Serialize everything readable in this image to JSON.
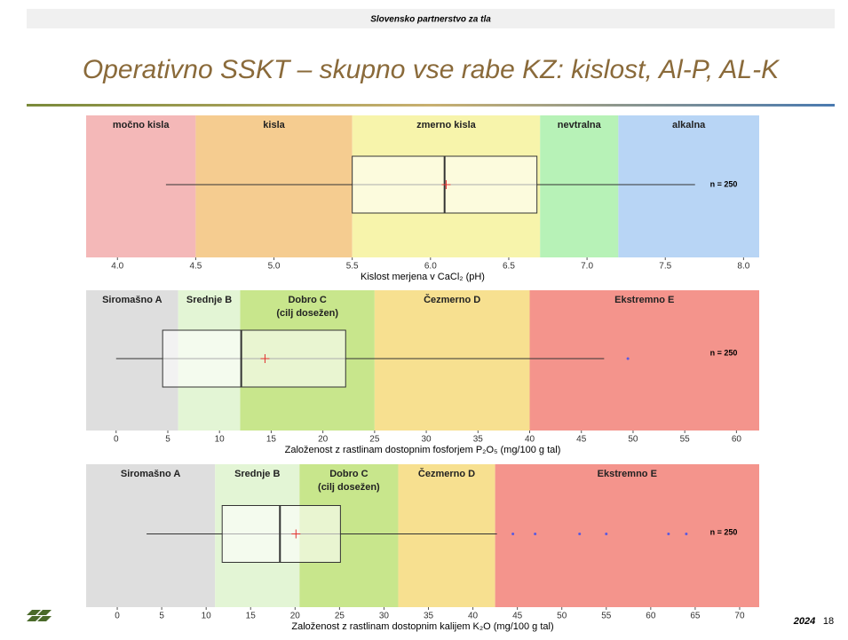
{
  "header": {
    "text": "Slovensko partnerstvo za tla",
    "title": "Operativno SSKT – skupno vse rabe KZ: kislost, Al-P, AL-K"
  },
  "footer": {
    "year": "2024",
    "page": "18"
  },
  "chart_data": [
    {
      "type": "box",
      "xlabel": "Kislost merjena v CaCl₂ (pH)",
      "xlim": [
        3.8,
        8.1
      ],
      "xticks": [
        {
          "value": 4,
          "label": "4.0"
        },
        4.5,
        {
          "value": 5,
          "label": "5.0"
        },
        5.5,
        {
          "value": 6,
          "label": "6.0"
        },
        6.5,
        {
          "value": 7,
          "label": "7.0"
        },
        7.5,
        {
          "value": 8,
          "label": "8.0"
        }
      ],
      "zones": [
        {
          "label": "močno kisla",
          "from": 3.8,
          "to": 4.5,
          "color": "#f4b8b8"
        },
        {
          "label": "kisla",
          "from": 4.5,
          "to": 5.5,
          "color": "#f5cc90"
        },
        {
          "label": "zmerno kisla",
          "from": 5.5,
          "to": 6.7,
          "color": "#f7f4ab"
        },
        {
          "label": "nevtralna",
          "from": 6.7,
          "to": 7.2,
          "color": "#b7f2b7"
        },
        {
          "label": "alkalna",
          "from": 7.2,
          "to": 8.1,
          "color": "#b8d5f5"
        }
      ],
      "box": {
        "min": 4.31,
        "q1": 5.5,
        "median": 6.09,
        "mean": 6.1,
        "q3": 6.68,
        "max": 7.69
      },
      "outliers": [],
      "n_label": "n = 250"
    },
    {
      "type": "box",
      "xlabel": "Založenost z rastlinam dostopnim fosforjem P₂O₅ (mg/100 g tal)",
      "xlim": [
        -2.9,
        62.2
      ],
      "xticks": [
        0,
        5,
        10,
        15,
        20,
        25,
        30,
        35,
        40,
        45,
        50,
        55,
        60
      ],
      "zones": [
        {
          "label": "Siromašno A",
          "from": -2.9,
          "to": 6,
          "color": "#dedede"
        },
        {
          "label": "Srednje B",
          "from": 6,
          "to": 12,
          "color": "#e3f5d5"
        },
        {
          "label": "Dobro C\n(cilj dosežen)",
          "from": 12,
          "to": 25,
          "color": "#c8e68c"
        },
        {
          "label": "Čezmerno D",
          "from": 25,
          "to": 40,
          "color": "#f7e090"
        },
        {
          "label": "Ekstremno E",
          "from": 40,
          "to": 62.2,
          "color": "#f4948c"
        }
      ],
      "box": {
        "min": 0,
        "q1": 4.5,
        "median": 12.1,
        "mean": 14.4,
        "q3": 22.2,
        "max": 47.2
      },
      "outliers": [
        49.5
      ],
      "n_label": "n = 250"
    },
    {
      "type": "box",
      "xlabel": "Založenost z rastlinam dostopnim kalijem K₂O (mg/100 g tal)",
      "xlim": [
        -3.5,
        72.2
      ],
      "xticks": [
        0,
        5,
        10,
        15,
        20,
        25,
        30,
        35,
        40,
        45,
        50,
        55,
        60,
        65,
        70
      ],
      "zones": [
        {
          "label": "Siromašno A",
          "from": -3.5,
          "to": 11,
          "color": "#dedede"
        },
        {
          "label": "Srednje B",
          "from": 11,
          "to": 20.5,
          "color": "#e3f5d5"
        },
        {
          "label": "Dobro C\n(cilj dosežen)",
          "from": 20.5,
          "to": 31.6,
          "color": "#c8e68c"
        },
        {
          "label": "Čezmerno D",
          "from": 31.6,
          "to": 42.5,
          "color": "#f7e090"
        },
        {
          "label": "Ekstremno E",
          "from": 42.5,
          "to": 72.2,
          "color": "#f4948c"
        }
      ],
      "box": {
        "min": 3.3,
        "q1": 11.8,
        "median": 18.3,
        "mean": 20.1,
        "q3": 25.1,
        "max": 42.7
      },
      "outliers": [
        44.5,
        47,
        52,
        55,
        62,
        64
      ],
      "n_label": "n = 250"
    }
  ]
}
